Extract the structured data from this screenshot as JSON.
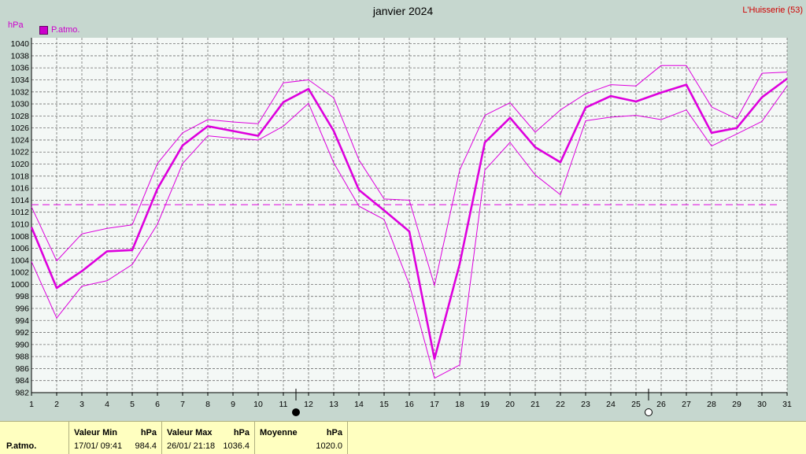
{
  "chart_data": {
    "type": "line",
    "title": "janvier 2024",
    "station": "L'Huisserie (53)",
    "ylabel": "hPa",
    "ylim": [
      982,
      1041
    ],
    "yticks": [
      982,
      984,
      986,
      988,
      990,
      992,
      994,
      996,
      998,
      1000,
      1002,
      1004,
      1006,
      1008,
      1010,
      1012,
      1014,
      1016,
      1018,
      1020,
      1022,
      1024,
      1026,
      1028,
      1030,
      1032,
      1034,
      1036,
      1038,
      1040
    ],
    "x": [
      1,
      2,
      3,
      4,
      5,
      6,
      7,
      8,
      9,
      10,
      11,
      12,
      13,
      14,
      15,
      16,
      17,
      18,
      19,
      20,
      21,
      22,
      23,
      24,
      25,
      26,
      27,
      28,
      29,
      30,
      31
    ],
    "grid": true,
    "legend_position": "top-left",
    "series": [
      {
        "name": "P.atmo.",
        "role": "mean",
        "color": "#dd00dd",
        "values": [
          1009.5,
          999.4,
          1002.2,
          1005.5,
          1005.7,
          1015.9,
          1023.1,
          1026.3,
          1025.5,
          1024.7,
          1030.3,
          1032.5,
          1025.5,
          1015.7,
          1012.3,
          1008.8,
          987.6,
          1003.4,
          1023.6,
          1027.7,
          1022.8,
          1020.3,
          1029.4,
          1031.3,
          1030.4,
          1031.9,
          1033.2,
          1025.2,
          1026.0,
          1031.1,
          1034.2
        ]
      },
      {
        "role": "max",
        "color": "#dd00dd",
        "values": [
          1012.9,
          1003.9,
          1008.4,
          1009.3,
          1009.9,
          1020.1,
          1025.2,
          1027.4,
          1027.0,
          1026.7,
          1033.5,
          1034.0,
          1031.0,
          1020.7,
          1014.2,
          1014.0,
          999.8,
          1019.0,
          1028.1,
          1030.2,
          1025.3,
          1029.0,
          1031.7,
          1033.2,
          1033.0,
          1036.4,
          1036.4,
          1029.5,
          1027.5,
          1035.1,
          1035.3
        ]
      },
      {
        "role": "min",
        "color": "#dd00dd",
        "values": [
          1003.8,
          994.4,
          999.7,
          1000.6,
          1003.3,
          1010.0,
          1020.1,
          1024.7,
          1024.3,
          1024.0,
          1026.3,
          1030.1,
          1020.2,
          1013.0,
          1010.8,
          1000.0,
          984.4,
          986.6,
          1019.0,
          1023.6,
          1018.2,
          1014.9,
          1027.2,
          1027.8,
          1028.1,
          1027.4,
          1029.0,
          1023.0,
          1025.0,
          1027.1,
          1033.0
        ]
      }
    ],
    "average_line": 1013.25,
    "moon_phases": [
      {
        "day": 11.5,
        "phase": "new-moon"
      },
      {
        "day": 25.5,
        "phase": "full-moon"
      }
    ]
  },
  "summary": {
    "row_label": "P.atmo.",
    "min_header": "Valeur Min",
    "max_header": "Valeur Max",
    "avg_header": "Moyenne",
    "unit": "hPa",
    "min_datetime": "17/01/  09:41",
    "min_value": "984.4",
    "max_datetime": "26/01/  21:18",
    "max_value": "1036.4",
    "avg_value": "1020.0"
  }
}
